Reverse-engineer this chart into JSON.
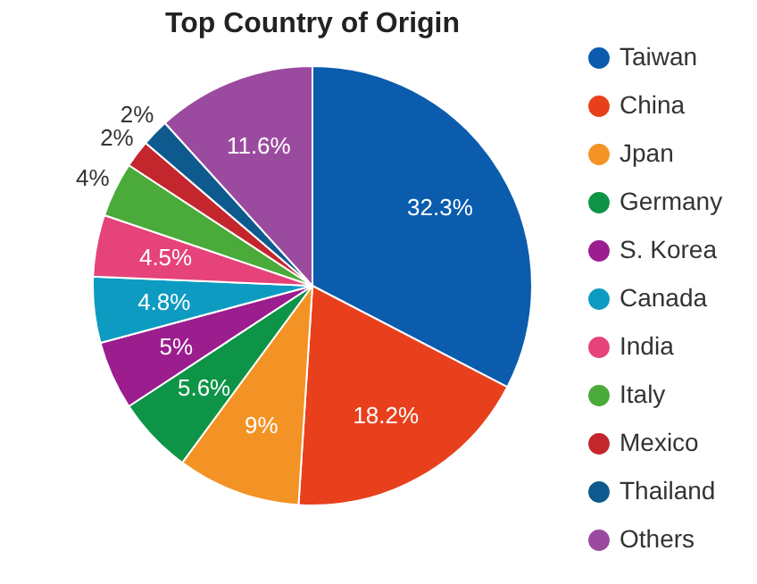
{
  "chart_data": {
    "type": "pie",
    "title": "Top Country of Origin",
    "categories": [
      "Taiwan",
      "China",
      "Jpan",
      "Germany",
      "S. Korea",
      "Canada",
      "India",
      "Italy",
      "Mexico",
      "Thailand",
      "Others"
    ],
    "values": [
      32.3,
      18.2,
      9,
      5.6,
      5,
      4.8,
      4.5,
      4,
      2,
      2,
      11.6
    ],
    "colors": [
      "#0b5cad",
      "#e8401c",
      "#f39325",
      "#0e9447",
      "#9b1d8e",
      "#0e9bc1",
      "#e5437a",
      "#4aaa3a",
      "#c4262e",
      "#0e5a8e",
      "#9b4b9f"
    ],
    "value_labels": [
      "32.3%",
      "18.2%",
      "9%",
      "5.6%",
      "5%",
      "4.8%",
      "4.5%",
      "4%",
      "2%",
      "2%",
      "11.6%"
    ],
    "legend": "right"
  }
}
